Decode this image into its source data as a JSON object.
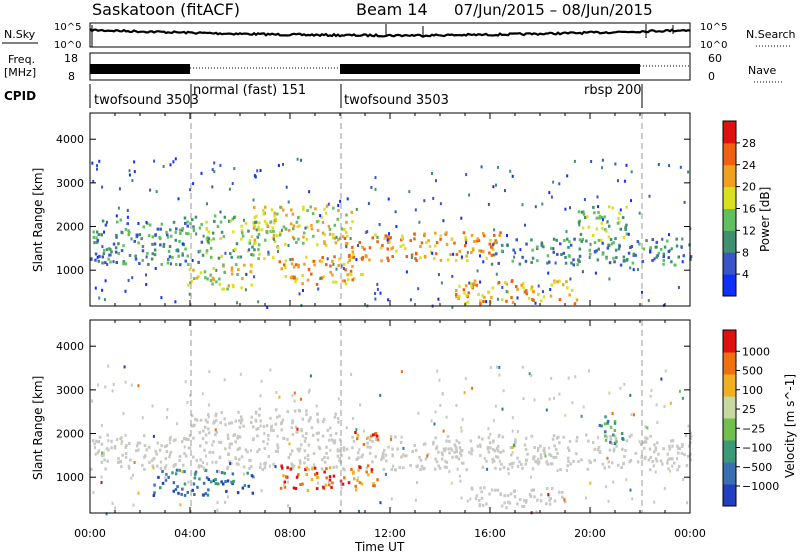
{
  "header": {
    "station": "Saskatoon (fitACF)",
    "beam": "Beam 14",
    "dates": "07/Jun/2015 – 08/Jun/2015"
  },
  "strip_nsky": {
    "label": "N.Sky",
    "tick_top": "10^5",
    "tick_bottom": "10^0",
    "right_label": "N.Search",
    "right_tick_top": "10^5",
    "right_tick_bottom": "10^0"
  },
  "strip_freq": {
    "label_line1": "Freq.",
    "label_line2": "[MHz]",
    "tick_top": "18",
    "tick_bottom": "8",
    "right_label": "Nave",
    "right_tick_top": "60",
    "right_tick_bottom": "0"
  },
  "cpid": {
    "label": "CPID",
    "segments": [
      {
        "name": "twofsound 3503",
        "start_h": 0,
        "end_h": 4
      },
      {
        "name": "normal (fast) 151",
        "start_h": 4,
        "end_h": 10
      },
      {
        "name": "twofsound 3503",
        "start_h": 10,
        "end_h": 20
      },
      {
        "name": "rbsp 200",
        "start_h": 20,
        "end_h": 22
      }
    ]
  },
  "chart_data": [
    {
      "type": "heatmap",
      "ylabel": "Slant Range [km]",
      "ylim": [
        180,
        4600
      ],
      "xlim_hours": [
        0,
        24
      ],
      "y_ticks": [
        1000,
        2000,
        3000,
        4000
      ],
      "colorbar": {
        "label": "Power [dB]",
        "ticks": [
          4,
          8,
          12,
          16,
          20,
          24,
          28
        ],
        "colors": [
          "#1030ff",
          "#3a55c8",
          "#3f8f70",
          "#60c060",
          "#d8e020",
          "#f0a020",
          "#f06010",
          "#e01010"
        ]
      },
      "bands": [
        {
          "t0": 0.0,
          "t1": 4.5,
          "r0": 1150,
          "r1": 2250,
          "level": 2
        },
        {
          "t0": 3.8,
          "t1": 6.5,
          "r0": 600,
          "r1": 1200,
          "level": 4
        },
        {
          "t0": 4.5,
          "t1": 7.5,
          "r0": 1300,
          "r1": 2300,
          "level": 3
        },
        {
          "t0": 6.5,
          "t1": 10.5,
          "r0": 1600,
          "r1": 2500,
          "level": 4
        },
        {
          "t0": 7.5,
          "t1": 11.0,
          "r0": 700,
          "r1": 1350,
          "level": 5
        },
        {
          "t0": 10.0,
          "t1": 16.5,
          "r0": 1250,
          "r1": 1900,
          "level": 5
        },
        {
          "t0": 14.5,
          "t1": 19.5,
          "r0": 250,
          "r1": 800,
          "level": 5
        },
        {
          "t0": 16.0,
          "t1": 24.0,
          "r0": 1150,
          "r1": 1750,
          "level": 2
        },
        {
          "t0": 19.5,
          "t1": 21.5,
          "r0": 1700,
          "r1": 2500,
          "level": 3
        }
      ]
    },
    {
      "type": "heatmap",
      "xlabel": "Time UT",
      "ylabel": "Slant Range [km]",
      "ylim": [
        180,
        4600
      ],
      "xlim_hours": [
        0,
        24
      ],
      "y_ticks": [
        1000,
        2000,
        3000,
        4000
      ],
      "x_ticks": [
        "00:00",
        "04:00",
        "08:00",
        "12:00",
        "16:00",
        "20:00",
        "00:00"
      ],
      "ground_scatter_color": "#c8c8c4",
      "colorbar": {
        "label": "Velocity [m s^-1]",
        "ticks": [
          "1000",
          "500",
          "100",
          "25",
          "−25",
          "−100",
          "−500",
          "−1000"
        ],
        "colors": [
          "#2040c0",
          "#3870b0",
          "#3a9a78",
          "#70c050",
          "#c8d8a0",
          "#f0b020",
          "#f07010",
          "#e01010"
        ]
      },
      "bands": [
        {
          "t0": 0.0,
          "t1": 24.0,
          "r0": 1200,
          "r1": 2000,
          "level": "gs"
        },
        {
          "t0": 4.0,
          "t1": 10.0,
          "r0": 2000,
          "r1": 2600,
          "level": "gs"
        },
        {
          "t0": 2.5,
          "t1": 6.5,
          "r0": 600,
          "r1": 1200,
          "level": 1
        },
        {
          "t0": 7.5,
          "t1": 11.5,
          "r0": 700,
          "r1": 1300,
          "level": 6
        },
        {
          "t0": 10.5,
          "t1": 11.5,
          "r0": 1700,
          "r1": 2100,
          "level": 6
        },
        {
          "t0": 15.0,
          "t1": 19.0,
          "r0": 300,
          "r1": 800,
          "level": "gs"
        },
        {
          "t0": 20.3,
          "t1": 21.3,
          "r0": 1800,
          "r1": 2500,
          "level": 2
        }
      ]
    }
  ]
}
